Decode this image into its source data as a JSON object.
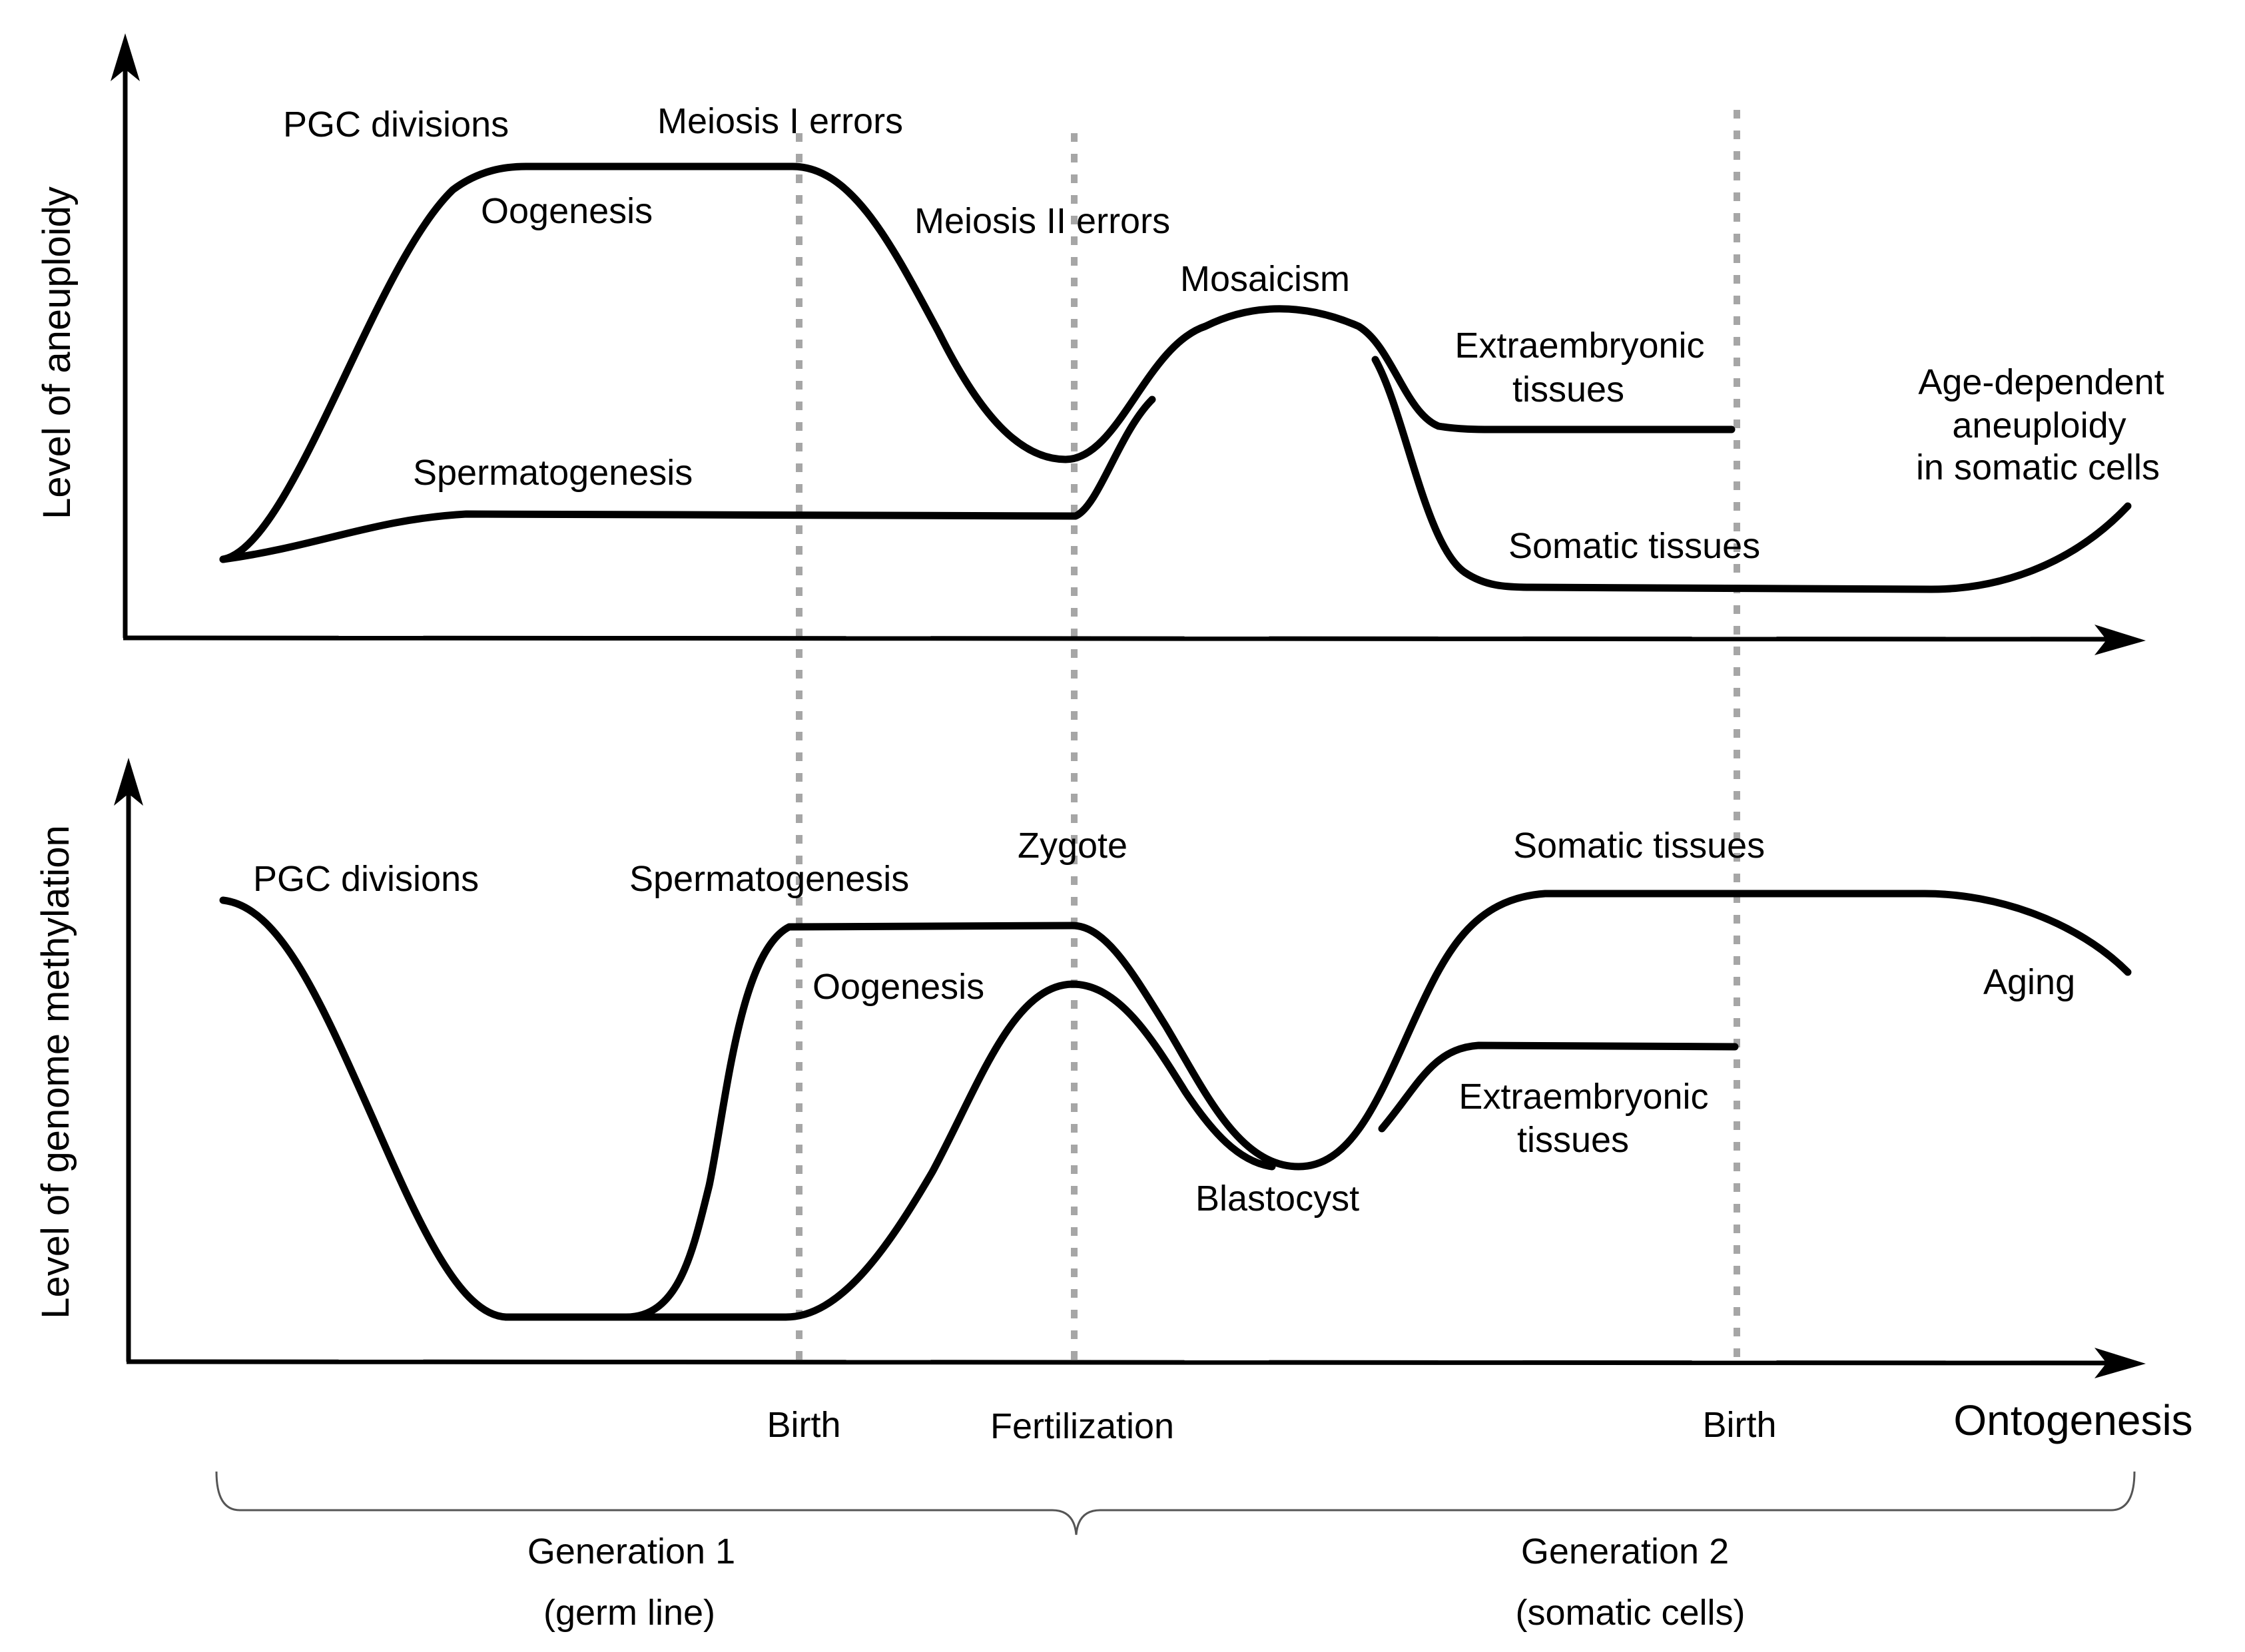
{
  "colors": {
    "curve": "#000000",
    "marker_line": "#a6a6a6",
    "brace": "#555555",
    "background": "#ffffff"
  },
  "top_panel": {
    "y_axis_title": "Level of aneuploidy",
    "labels": {
      "pgc_divisions": "PGC divisions",
      "meiosis_1": "Meiosis I errors",
      "oogenesis": "Oogenesis",
      "meiosis_2": "Meiosis II errors",
      "mosaicism": "Mosaicism",
      "extraembryonic_1": "Extraembryonic",
      "extraembryonic_2": "tissues",
      "spermatogenesis": "Spermatogenesis",
      "age_1": "Age-dependent",
      "age_2": "aneuploidy",
      "age_3": "in somatic cells",
      "somatic": "Somatic tissues"
    }
  },
  "bottom_panel": {
    "y_axis_title": "Level of genome methylation",
    "labels": {
      "pgc_divisions": "PGC divisions",
      "spermatogenesis": "Spermatogenesis",
      "zygote": "Zygote",
      "somatic": "Somatic tissues",
      "oogenesis": "Oogenesis",
      "aging": "Aging",
      "extraembryonic_1": "Extraembryonic",
      "extraembryonic_2": "tissues",
      "blastocyst": "Blastocyst"
    }
  },
  "x_axis": {
    "title": "Ontogenesis",
    "events": {
      "birth_1": "Birth",
      "fertilization": "Fertilization",
      "birth_2": "Birth"
    }
  },
  "generations": {
    "gen1_line1": "Generation 1",
    "gen1_line2": "(germ line)",
    "gen2_line1": "Generation 2",
    "gen2_line2": "(somatic cells)"
  }
}
